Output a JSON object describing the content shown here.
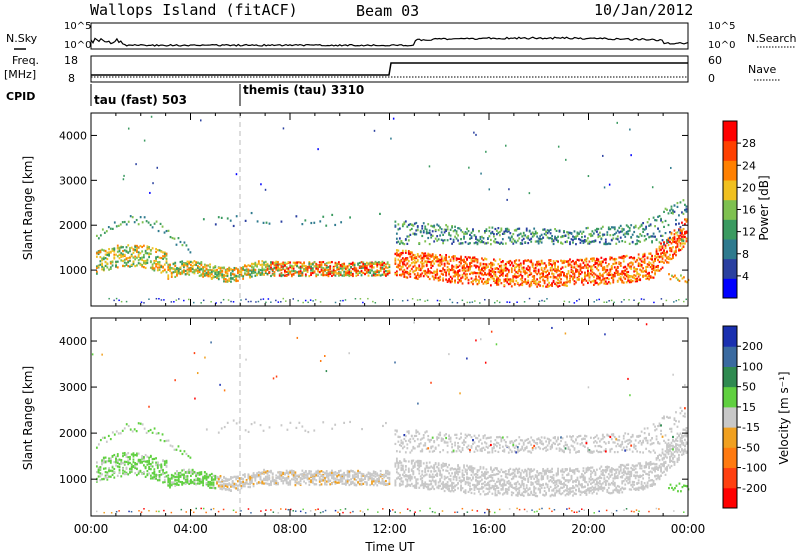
{
  "header": {
    "station": "Wallops Island (fitACF)",
    "beam": "Beam 03",
    "date": "10/Jan/2012"
  },
  "sky_panel": {
    "left_label": "N.Sky",
    "right_label": "N.Search",
    "ticks": [
      "10^5",
      "10^0"
    ]
  },
  "freq_panel": {
    "left_label_line1": "Freq.",
    "left_label_line2": "[MHz]",
    "left_ticks": [
      "18",
      "8"
    ],
    "right_label": "Nave",
    "right_ticks": [
      "60",
      "0"
    ]
  },
  "cpid": {
    "label": "CPID",
    "segments": [
      {
        "text": "tau (fast) 503",
        "start_h": 0
      },
      {
        "text": "themis (tau) 3310",
        "start_h": 6
      }
    ]
  },
  "chart_data": [
    {
      "type": "heatmap",
      "name": "power",
      "ylabel": "Slant Range [km]",
      "xlabel": "Time UT",
      "xlim": [
        0,
        24
      ],
      "ylim": [
        200,
        4500
      ],
      "yticks": [
        "1000",
        "2000",
        "3000",
        "4000"
      ],
      "colorbar": {
        "label": "Power [dB]",
        "ticks": [
          "4",
          "8",
          "12",
          "16",
          "20",
          "24",
          "28"
        ],
        "range": [
          0,
          32
        ],
        "colors": [
          "#0000ff",
          "#2a40a0",
          "#2e7a8e",
          "#3a9a60",
          "#7ec050",
          "#f0c020",
          "#ff8000",
          "#ff4000",
          "#ff0000"
        ]
      }
    },
    {
      "type": "heatmap",
      "name": "velocity",
      "ylabel": "Slant Range [km]",
      "xlabel": "Time UT",
      "xlim": [
        0,
        24
      ],
      "ylim": [
        200,
        4500
      ],
      "yticks": [
        "1000",
        "2000",
        "3000",
        "4000"
      ],
      "colorbar": {
        "label": "Velocity [m s⁻¹]",
        "ticks": [
          "200",
          "100",
          "50",
          "15",
          "-15",
          "-50",
          "-100",
          "-200"
        ],
        "colors": [
          "#1a30b0",
          "#3a6aa0",
          "#2f8a50",
          "#60d040",
          "#c8c8c8",
          "#f0a020",
          "#ff7a10",
          "#ff4010",
          "#ff0000"
        ]
      }
    }
  ],
  "time_axis": {
    "label": "Time UT",
    "ticks": [
      "00:00",
      "04:00",
      "08:00",
      "12:00",
      "16:00",
      "20:00",
      "00:00"
    ]
  }
}
